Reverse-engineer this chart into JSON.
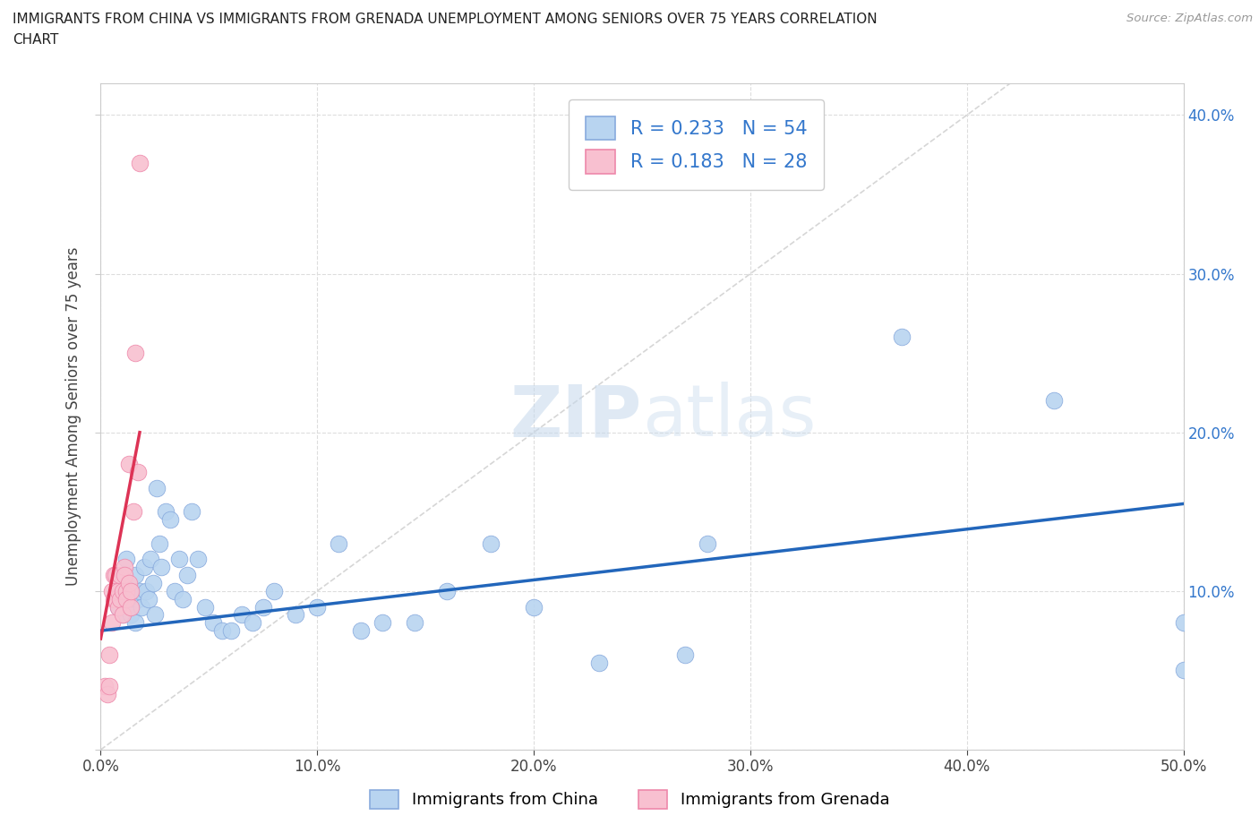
{
  "title_line1": "IMMIGRANTS FROM CHINA VS IMMIGRANTS FROM GRENADA UNEMPLOYMENT AMONG SENIORS OVER 75 YEARS CORRELATION",
  "title_line2": "CHART",
  "source": "Source: ZipAtlas.com",
  "ylabel": "Unemployment Among Seniors over 75 years",
  "xlim": [
    0.0,
    0.5
  ],
  "ylim": [
    0.0,
    0.42
  ],
  "china_color": "#b8d4f0",
  "grenada_color": "#f8c0d0",
  "china_edge": "#88aadd",
  "grenada_edge": "#ee88aa",
  "trend_china_color": "#2266bb",
  "trend_grenada_color": "#dd3355",
  "diag_color": "#cccccc",
  "R_china": 0.233,
  "N_china": 54,
  "R_grenada": 0.183,
  "N_grenada": 28,
  "legend_china": "Immigrants from China",
  "legend_grenada": "Immigrants from Grenada",
  "watermark_zip": "ZIP",
  "watermark_atlas": "atlas",
  "background_color": "#ffffff",
  "grid_color": "#dddddd",
  "right_tick_color": "#3377cc",
  "legend_text_color": "#3377cc",
  "china_x": [
    0.008,
    0.01,
    0.01,
    0.012,
    0.012,
    0.013,
    0.014,
    0.015,
    0.016,
    0.016,
    0.017,
    0.018,
    0.019,
    0.02,
    0.021,
    0.022,
    0.023,
    0.024,
    0.025,
    0.026,
    0.027,
    0.028,
    0.03,
    0.032,
    0.034,
    0.036,
    0.038,
    0.04,
    0.042,
    0.045,
    0.048,
    0.052,
    0.056,
    0.06,
    0.065,
    0.07,
    0.075,
    0.08,
    0.09,
    0.1,
    0.11,
    0.12,
    0.13,
    0.145,
    0.16,
    0.18,
    0.2,
    0.23,
    0.27,
    0.28,
    0.37,
    0.44,
    0.5,
    0.5
  ],
  "china_y": [
    0.09,
    0.11,
    0.085,
    0.1,
    0.12,
    0.095,
    0.085,
    0.1,
    0.11,
    0.08,
    0.095,
    0.1,
    0.09,
    0.115,
    0.1,
    0.095,
    0.12,
    0.105,
    0.085,
    0.165,
    0.13,
    0.115,
    0.15,
    0.145,
    0.1,
    0.12,
    0.095,
    0.11,
    0.15,
    0.12,
    0.09,
    0.08,
    0.075,
    0.075,
    0.085,
    0.08,
    0.09,
    0.1,
    0.085,
    0.09,
    0.13,
    0.075,
    0.08,
    0.08,
    0.1,
    0.13,
    0.09,
    0.055,
    0.06,
    0.13,
    0.26,
    0.22,
    0.08,
    0.05
  ],
  "grenada_x": [
    0.002,
    0.003,
    0.004,
    0.004,
    0.005,
    0.005,
    0.006,
    0.006,
    0.007,
    0.007,
    0.008,
    0.008,
    0.009,
    0.009,
    0.01,
    0.01,
    0.011,
    0.011,
    0.012,
    0.012,
    0.013,
    0.013,
    0.014,
    0.014,
    0.015,
    0.016,
    0.017,
    0.018
  ],
  "grenada_y": [
    0.04,
    0.035,
    0.04,
    0.06,
    0.1,
    0.08,
    0.095,
    0.11,
    0.095,
    0.11,
    0.09,
    0.1,
    0.11,
    0.095,
    0.1,
    0.085,
    0.115,
    0.11,
    0.1,
    0.095,
    0.105,
    0.18,
    0.09,
    0.1,
    0.15,
    0.25,
    0.175,
    0.37
  ]
}
